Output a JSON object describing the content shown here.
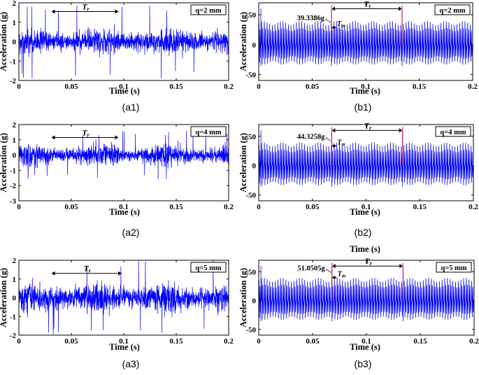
{
  "colors": {
    "signal": "#0000ff",
    "marker": "#ff0000",
    "axis": "#000000"
  },
  "chart_data": [
    {
      "id": "a1",
      "type": "line",
      "caption": "(a1)",
      "xlabel": "Time (s)",
      "ylabel": "Acceleration (g)",
      "xlim": [
        0,
        0.2
      ],
      "ylim": [
        -2,
        2
      ],
      "xticks": [
        0,
        0.05,
        0.1,
        0.15,
        0.2
      ],
      "xtick_labels": [
        "0",
        "0.05",
        "0.1",
        "0.15",
        "0.2"
      ],
      "yticks": [
        -2,
        -1,
        0,
        1,
        2
      ],
      "ytick_labels": [
        "-2",
        "-1",
        "0",
        "1",
        "2"
      ],
      "legend": "q=2 mm",
      "series": [
        {
          "name": "acceleration",
          "kind": "noise",
          "std": 0.5,
          "peak": 1.9,
          "period_s": 0.066,
          "mod": 0.25
        }
      ],
      "annotations": {
        "tr_label": "T",
        "tr_sub": "r",
        "tr_x": [
          0.031,
          0.095
        ],
        "tr_y": 1.55
      }
    },
    {
      "id": "b1",
      "type": "line",
      "caption": "(b1)",
      "xlabel": "Time (s)",
      "ylabel": "Acceleration (g)",
      "xlim": [
        0,
        0.2
      ],
      "ylim": [
        -60,
        70
      ],
      "xticks": [
        0,
        0.05,
        0.1,
        0.15,
        0.2
      ],
      "xtick_labels": [
        "0",
        "0.05",
        "0.1",
        "0.15",
        "0.2"
      ],
      "yticks": [
        -50,
        0,
        50
      ],
      "ytick_labels": [
        "-50",
        "0",
        "50"
      ],
      "legend": "q=2 mm",
      "series": [
        {
          "name": "acceleration",
          "kind": "impulse",
          "amplitude_mean": 36,
          "amplitude_var": 3.5,
          "mesh_period_s": 0.0025,
          "rot_period_s": 0.066,
          "spike": 60,
          "spike_t": [
            0.002,
            0.068,
            0.134
          ]
        }
      ],
      "annotations": {
        "peak_value": "39.3386g",
        "peak_x": 0.068,
        "peak_y": 39.3,
        "tr_label": "T",
        "tr_sub": "r",
        "tr_x": [
          0.068,
          0.134
        ],
        "tr_y": 60,
        "tm_label": "T",
        "tm_sub": "m"
      }
    },
    {
      "id": "a2",
      "type": "line",
      "caption": "(a2)",
      "xlabel": "Time (s)",
      "ylabel": "Acceleration (g)",
      "xlim": [
        0,
        0.2
      ],
      "ylim": [
        -3,
        2
      ],
      "xticks": [
        0,
        0.05,
        0.1,
        0.15,
        0.2
      ],
      "xtick_labels": [
        "0",
        "0.05",
        "0.1",
        "0.15",
        "0.2"
      ],
      "yticks": [
        -3,
        -2,
        -1,
        0,
        1,
        2
      ],
      "ytick_labels": [
        "-3",
        "-2",
        "-1",
        "0",
        "1",
        "2"
      ],
      "legend": "q=4 mm",
      "series": [
        {
          "name": "acceleration",
          "kind": "noise",
          "std": 0.5,
          "peak": 1.6,
          "period_s": 0.066,
          "mod": 0.35
        }
      ],
      "annotations": {
        "tr_label": "T",
        "tr_sub": "r",
        "tr_x": [
          0.031,
          0.095
        ],
        "tr_y": 1.15
      }
    },
    {
      "id": "b2",
      "type": "line",
      "caption": "(b2)",
      "xlabel": "Time (s)",
      "ylabel": "Acceleration (g)",
      "xlim": [
        0,
        0.2
      ],
      "ylim": [
        -60,
        70
      ],
      "xticks": [
        0,
        0.05,
        0.1,
        0.15,
        0.2
      ],
      "xtick_labels": [
        "0",
        "0.05",
        "0.1",
        "0.15",
        "0.2"
      ],
      "yticks": [
        -50,
        0,
        50
      ],
      "ytick_labels": [
        "-50",
        "0",
        "50"
      ],
      "legend": "q=4 mm",
      "series": [
        {
          "name": "acceleration",
          "kind": "impulse",
          "amplitude_mean": 36,
          "amplitude_var": 3.5,
          "mesh_period_s": 0.0025,
          "rot_period_s": 0.066,
          "spike": 60,
          "spike_t": [
            0.002,
            0.068,
            0.134
          ]
        }
      ],
      "annotations": {
        "peak_value": "44.3258g",
        "peak_x": 0.068,
        "peak_y": 44.3,
        "tr_label": "T",
        "tr_sub": "r",
        "tr_x": [
          0.068,
          0.134
        ],
        "tr_y": 60,
        "tm_label": "T",
        "tm_sub": "m"
      }
    },
    {
      "id": "a3",
      "type": "line",
      "caption": "(a3)",
      "xlabel": "Time (s)",
      "ylabel": "Acceleration (g)",
      "xlim": [
        0,
        0.2
      ],
      "ylim": [
        -2,
        2
      ],
      "xticks": [
        0,
        0.05,
        0.1,
        0.15,
        0.2
      ],
      "xtick_labels": [
        "0",
        "0.05",
        "0.1",
        "0.15",
        "0.2"
      ],
      "yticks": [
        -2,
        -1,
        0,
        1,
        2
      ],
      "ytick_labels": [
        "-2",
        "-1",
        "0",
        "1",
        "2"
      ],
      "legend": "q=5 mm",
      "series": [
        {
          "name": "acceleration",
          "kind": "noise",
          "std": 0.6,
          "peak": 2.05,
          "period_s": 0.066,
          "mod": 0.25
        }
      ],
      "annotations": {
        "tr_label": "T",
        "tr_sub": "r",
        "tr_x": [
          0.031,
          0.098
        ],
        "tr_y": 1.3
      }
    },
    {
      "id": "b3",
      "type": "line",
      "caption": "(b3)",
      "xlabel": "Time (s)",
      "ylabel": "Acceleration (g)",
      "xlim": [
        0,
        0.2
      ],
      "ylim": [
        -60,
        70
      ],
      "xticks": [
        0,
        0.05,
        0.1,
        0.15,
        0.2
      ],
      "xtick_labels": [
        "0",
        "0.05",
        "0.1",
        "0.15",
        "0.2"
      ],
      "yticks": [
        -50,
        0,
        50
      ],
      "ytick_labels": [
        "-50",
        "0",
        "50"
      ],
      "legend": "q=5 mm",
      "series": [
        {
          "name": "acceleration",
          "kind": "impulse",
          "amplitude_mean": 36,
          "amplitude_var": 3.5,
          "mesh_period_s": 0.0025,
          "rot_period_s": 0.066,
          "spike": 60,
          "spike_t": [
            0.002,
            0.068,
            0.134
          ]
        }
      ],
      "annotations": {
        "peak_value": "51.0505g",
        "peak_x": 0.068,
        "peak_y": 51.05,
        "tr_label": "T",
        "tr_sub": "r",
        "tr_x": [
          0.068,
          0.134
        ],
        "tr_y": 60,
        "tm_label": "T",
        "tm_sub": "m"
      },
      "extra_label": "Time (s)"
    }
  ]
}
